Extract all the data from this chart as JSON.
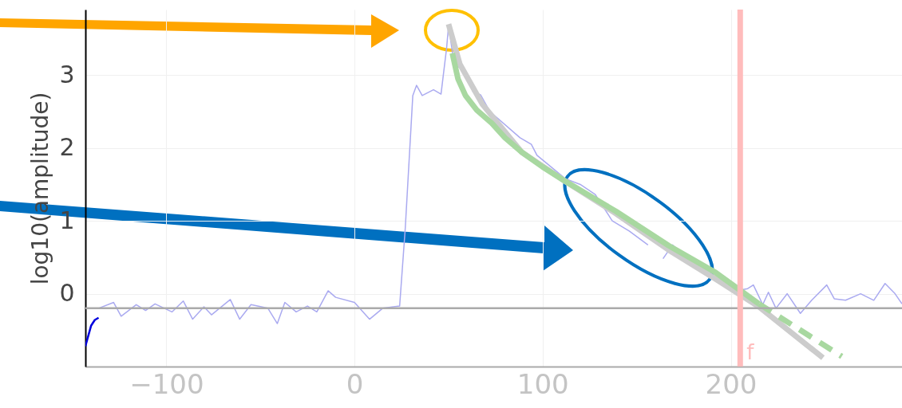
{
  "chart_data": {
    "type": "line",
    "ylabel": "log10(amplitude)",
    "xlim": [
      -143,
      291
    ],
    "ylim": [
      -1,
      3.9
    ],
    "xticks": [
      -100,
      0,
      100,
      200
    ],
    "yticks": [
      0,
      1,
      2,
      3
    ],
    "grid": true,
    "marker": "none",
    "series": [
      {
        "color": "#0000dd",
        "x": [
          -143,
          -140,
          -138,
          -136
        ],
        "values": [
          -0.72,
          -0.44,
          -0.36,
          -0.33
        ]
      },
      {
        "color": "#aaaaf0",
        "x": [
          -136,
          -128,
          -124,
          -116,
          -111,
          -106,
          -97,
          -91,
          -86,
          -80,
          -76,
          -66,
          -61,
          -55,
          -46,
          -41,
          -37,
          -31,
          -25,
          -20,
          -14,
          -10,
          0,
          8,
          15,
          24,
          27,
          31,
          33,
          36,
          42,
          46,
          49,
          50,
          53,
          59,
          63,
          67,
          72,
          88,
          94,
          97,
          112,
          120,
          128,
          137,
          146,
          156,
          160,
          164,
          169,
          180,
          195,
          205,
          209,
          212,
          217,
          220,
          224,
          230,
          237,
          243,
          251,
          255,
          261,
          269,
          276,
          282,
          287,
          291
        ],
        "values": [
          -0.2,
          -0.12,
          -0.31,
          -0.15,
          -0.23,
          -0.14,
          -0.25,
          -0.1,
          -0.35,
          -0.18,
          -0.29,
          -0.08,
          -0.35,
          -0.15,
          -0.2,
          -0.41,
          -0.12,
          -0.25,
          -0.17,
          -0.25,
          0.04,
          -0.05,
          -0.12,
          -0.35,
          -0.2,
          -0.17,
          0.9,
          2.72,
          2.86,
          2.72,
          2.8,
          2.74,
          3.38,
          3.68,
          3.15,
          3.05,
          2.77,
          2.73,
          2.5,
          2.14,
          2.05,
          1.9,
          1.58,
          1.5,
          1.36,
          1.0,
          0.86,
          0.67,
          null,
          0.48,
          0.67,
          0.42,
          0.22,
          0.05,
          0.07,
          0.12,
          -0.15,
          0.02,
          -0.2,
          0.0,
          -0.27,
          -0.09,
          0.12,
          -0.07,
          -0.09,
          0.0,
          -0.09,
          0.14,
          0.01,
          -0.14
        ]
      },
      {
        "color": "#cccccc",
        "x": [
          50,
          56,
          68,
          89,
          111,
          139,
          167,
          192,
          215,
          249
        ],
        "values": [
          3.7,
          3.15,
          2.6,
          1.94,
          1.56,
          1.1,
          0.6,
          0.2,
          -0.18,
          -0.88
        ]
      },
      {
        "color": "#a8d8a0",
        "x": [
          52,
          55,
          59,
          65,
          73,
          80,
          89,
          100,
          111,
          139,
          167,
          192,
          215
        ],
        "values": [
          3.3,
          2.95,
          2.72,
          2.52,
          2.34,
          2.14,
          1.94,
          1.74,
          1.56,
          1.13,
          0.66,
          0.29,
          -0.14
        ]
      },
      {
        "color": "#a8d8a0",
        "line_style": "dashed",
        "x": [
          215,
          259
        ],
        "values": [
          -0.14,
          -0.86
        ]
      }
    ],
    "ref_lines": [
      {
        "axis": "y",
        "value": -0.2,
        "color": "#aaaaaa"
      },
      {
        "axis": "x",
        "value": 205,
        "label": "f",
        "color": "#ffbcbc"
      }
    ]
  }
}
